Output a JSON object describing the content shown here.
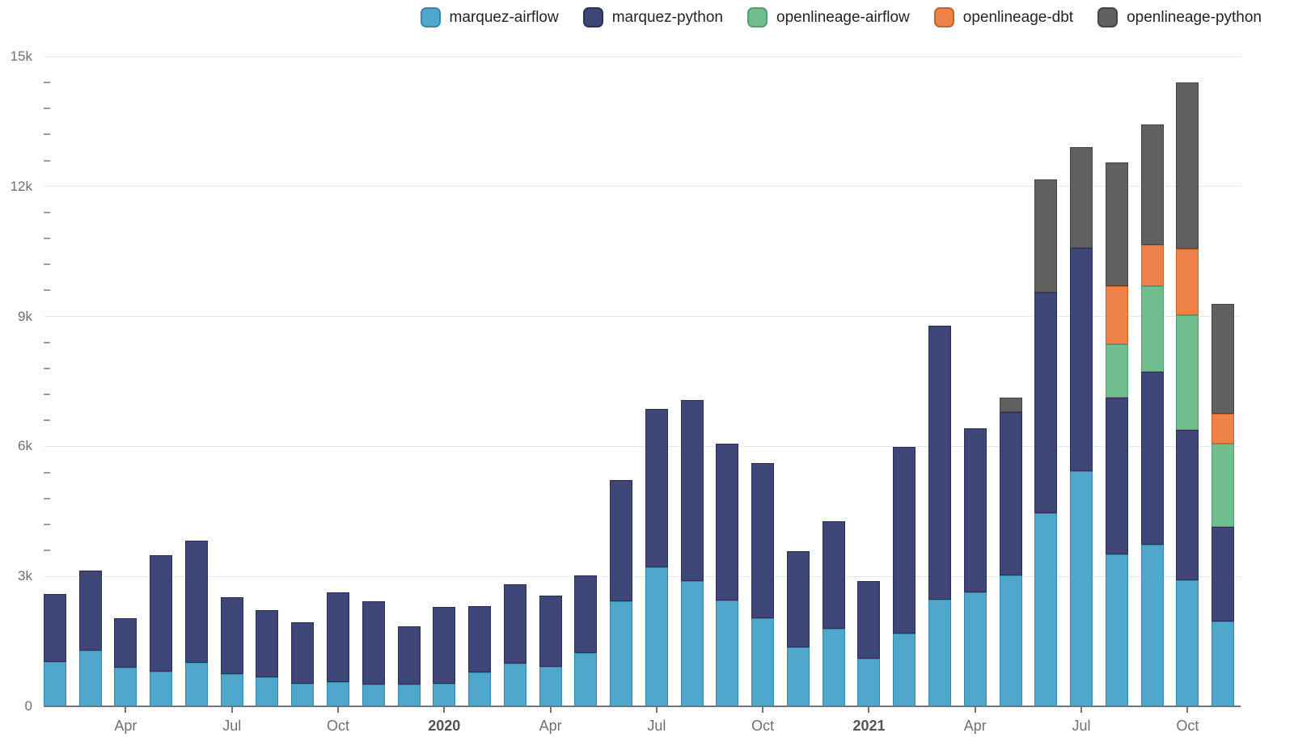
{
  "chart_data": {
    "type": "bar",
    "stacked": true,
    "title": "",
    "xlabel": "",
    "ylabel": "",
    "ylim": [
      0,
      15000
    ],
    "y_major_step": 3000,
    "y_minor_step": 600,
    "grid": true,
    "legend_position": "top-right",
    "y_ticks": [
      {
        "value": 0,
        "label": "0"
      },
      {
        "value": 3000,
        "label": "3k"
      },
      {
        "value": 6000,
        "label": "6k"
      },
      {
        "value": 9000,
        "label": "9k"
      },
      {
        "value": 12000,
        "label": "12k"
      },
      {
        "value": 15000,
        "label": "15k"
      }
    ],
    "x_ticks": [
      {
        "index": 2,
        "label": "Apr",
        "bold": false
      },
      {
        "index": 5,
        "label": "Jul",
        "bold": false
      },
      {
        "index": 8,
        "label": "Oct",
        "bold": false
      },
      {
        "index": 11,
        "label": "2020",
        "bold": true
      },
      {
        "index": 14,
        "label": "Apr",
        "bold": false
      },
      {
        "index": 17,
        "label": "Jul",
        "bold": false
      },
      {
        "index": 20,
        "label": "Oct",
        "bold": false
      },
      {
        "index": 23,
        "label": "2021",
        "bold": true
      },
      {
        "index": 26,
        "label": "Apr",
        "bold": false
      },
      {
        "index": 29,
        "label": "Jul",
        "bold": false
      },
      {
        "index": 32,
        "label": "Oct",
        "bold": false
      }
    ],
    "categories": [
      "Feb 2019",
      "Mar 2019",
      "Apr 2019",
      "May 2019",
      "Jun 2019",
      "Jul 2019",
      "Aug 2019",
      "Sep 2019",
      "Oct 2019",
      "Nov 2019",
      "Dec 2019",
      "Jan 2020",
      "Feb 2020",
      "Mar 2020",
      "Apr 2020",
      "May 2020",
      "Jun 2020",
      "Jul 2020",
      "Aug 2020",
      "Sep 2020",
      "Oct 2020",
      "Nov 2020",
      "Dec 2020",
      "Jan 2021",
      "Feb 2021",
      "Mar 2021",
      "Apr 2021",
      "May 2021",
      "Jun 2021",
      "Jul 2021",
      "Aug 2021",
      "Sep 2021",
      "Oct 2021",
      "Nov 2021"
    ],
    "series": [
      {
        "name": "marquez-airflow",
        "color": "#4FA7CB",
        "border_color": "#3B86A8",
        "values": [
          1030,
          1280,
          900,
          810,
          1000,
          750,
          670,
          520,
          560,
          500,
          510,
          530,
          790,
          990,
          920,
          1230,
          2430,
          3210,
          2900,
          2440,
          2040,
          1370,
          1790,
          1110,
          1680,
          2470,
          2640,
          3020,
          4460,
          5430,
          3500,
          3730,
          2910,
          1950
        ]
      },
      {
        "name": "marquez-python",
        "color": "#3E4678",
        "border_color": "#2A3057",
        "values": [
          1570,
          1850,
          1140,
          2680,
          2830,
          1760,
          1550,
          1430,
          2080,
          1930,
          1330,
          1770,
          1530,
          1820,
          1630,
          1800,
          2790,
          3650,
          4170,
          3620,
          3570,
          2210,
          2480,
          1780,
          4300,
          6310,
          3780,
          3770,
          5100,
          5150,
          3620,
          4000,
          3480,
          2190
        ]
      },
      {
        "name": "openlineage-airflow",
        "color": "#70BE8D",
        "border_color": "#549C71",
        "values": [
          0,
          0,
          0,
          0,
          0,
          0,
          0,
          0,
          0,
          0,
          0,
          0,
          0,
          0,
          0,
          0,
          0,
          0,
          0,
          0,
          0,
          0,
          0,
          0,
          0,
          0,
          0,
          0,
          0,
          0,
          1240,
          1980,
          2640,
          1920
        ]
      },
      {
        "name": "openlineage-dbt",
        "color": "#EE8248",
        "border_color": "#C5632C",
        "values": [
          0,
          0,
          0,
          0,
          0,
          0,
          0,
          0,
          0,
          0,
          0,
          0,
          0,
          0,
          0,
          0,
          0,
          0,
          0,
          0,
          0,
          0,
          0,
          0,
          0,
          0,
          0,
          0,
          0,
          0,
          1350,
          940,
          1530,
          690
        ]
      },
      {
        "name": "openlineage-python",
        "color": "#606060",
        "border_color": "#454545",
        "values": [
          0,
          0,
          0,
          0,
          0,
          0,
          0,
          0,
          0,
          0,
          0,
          0,
          0,
          0,
          0,
          0,
          0,
          0,
          0,
          0,
          0,
          0,
          0,
          0,
          0,
          0,
          0,
          340,
          2600,
          2340,
          2850,
          2790,
          3840,
          2540
        ]
      }
    ]
  },
  "colors": {
    "background": "#FFFFFF",
    "gridline": "#E4E9F3",
    "axis_line": "#71757D",
    "minor_tick": "#9B9EA6",
    "axis_label": "#6E7079",
    "year_label": "#51545C",
    "legend_text": "#242424"
  }
}
